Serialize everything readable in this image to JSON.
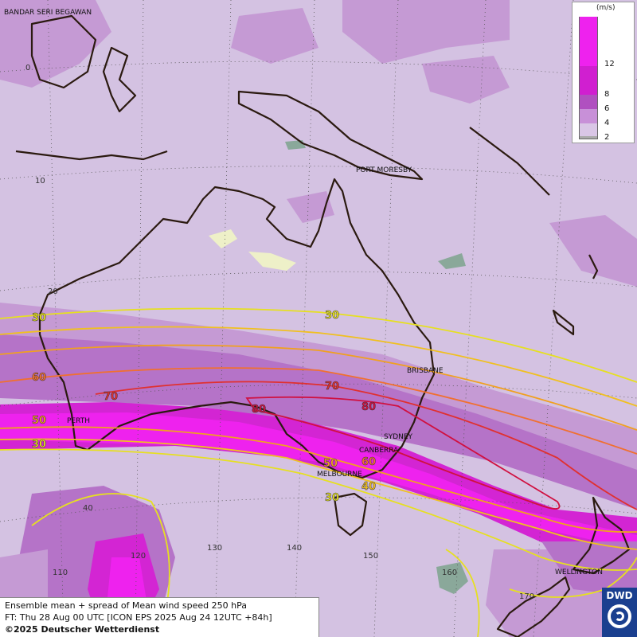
{
  "title_lines": [
    "Ensemble mean + spread of Mean wind speed 250 hPa",
    "FT: Thu 28 Aug 00 UTC [ICON EPS 2025 Aug 24 12UTC +84h]",
    "©2025 Deutscher Wetterdienst"
  ],
  "legend": {
    "unit": "(m/s)",
    "ticks": [
      "12",
      "8",
      "6",
      "4",
      "2"
    ],
    "colors": [
      "#ee22ee",
      "#d01fd0",
      "#b050c0",
      "#c890d8",
      "#d9c6e6",
      "#aaaaaa"
    ]
  },
  "logo": {
    "text": "DWD"
  },
  "cities": [
    {
      "name": "BANDAR SERI BEGAWAN"
    },
    {
      "name": "PORT MORESBY"
    },
    {
      "name": "BRISBANE"
    },
    {
      "name": "PERTH"
    },
    {
      "name": "SYDNEY"
    },
    {
      "name": "CANBERRA"
    },
    {
      "name": "MELBOURNE"
    },
    {
      "name": "WELLINGTON"
    }
  ],
  "grid_labels": {
    "lat": [
      "0",
      "10",
      "20",
      "40"
    ],
    "lon": [
      "110",
      "120",
      "130",
      "140",
      "150",
      "160",
      "170"
    ]
  },
  "contour_labels": [
    {
      "text": "30",
      "color": "#e6e020"
    },
    {
      "text": "30",
      "color": "#e6e020"
    },
    {
      "text": "60",
      "color": "#f07030"
    },
    {
      "text": "70",
      "color": "#e03030"
    },
    {
      "text": "70",
      "color": "#e03030"
    },
    {
      "text": "80",
      "color": "#d01040"
    },
    {
      "text": "80",
      "color": "#d01040"
    },
    {
      "text": "50",
      "color": "#f0a020"
    },
    {
      "text": "30",
      "color": "#e6e020"
    },
    {
      "text": "50",
      "color": "#f0a020"
    },
    {
      "text": "60",
      "color": "#f07030"
    },
    {
      "text": "40",
      "color": "#f0c020"
    },
    {
      "text": "30",
      "color": "#e6e020"
    }
  ]
}
